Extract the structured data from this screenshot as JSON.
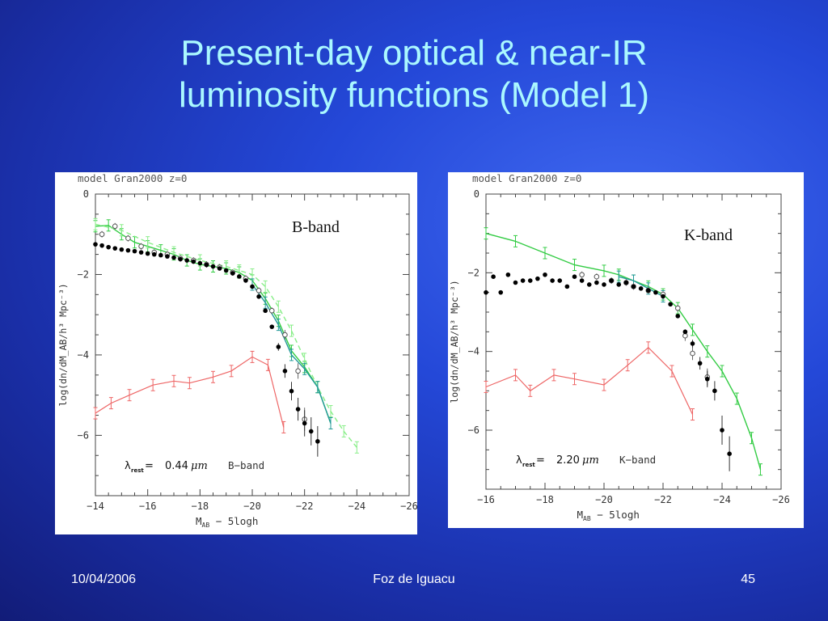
{
  "slide": {
    "title_line1": "Present-day optical & near-IR",
    "title_line2": "luminosity functions (Model 1)",
    "footer_date": "10/04/2006",
    "footer_venue": "Foz de Iguacu",
    "footer_page": "45"
  },
  "colors": {
    "green": "#33cc44",
    "green_dashed": "#88ee88",
    "teal": "#229999",
    "red": "#ee6666",
    "points": "#000000"
  },
  "chart_data": [
    {
      "type": "scatter",
      "header": "model Gran2000 z=0",
      "band_label": "B-band",
      "lambda_symbol": "λ",
      "lambda_sub": "rest",
      "lambda_eq": "=",
      "lambda_value": "0.44",
      "lambda_unit": "μm",
      "lambda_band": "B−band",
      "xlabel": "M_AB − 5logh",
      "ylabel": "log(dn/dM_AB/h³ Mpc⁻³)",
      "xlim": [
        -14,
        -26
      ],
      "ylim": [
        -7.5,
        0
      ],
      "xticks": [
        -14,
        -16,
        -18,
        -20,
        -22,
        -24,
        -26
      ],
      "yticks": [
        0,
        -2,
        -4,
        -6
      ],
      "filled_points": {
        "x": [
          -14.0,
          -14.25,
          -14.5,
          -14.75,
          -15.0,
          -15.25,
          -15.5,
          -15.75,
          -16.0,
          -16.25,
          -16.5,
          -16.75,
          -17.0,
          -17.25,
          -17.5,
          -17.75,
          -18.0,
          -18.25,
          -18.5,
          -18.75,
          -19.0,
          -19.25,
          -19.5,
          -19.75,
          -20.0,
          -20.25,
          -20.5,
          -20.75,
          -21.0,
          -21.25,
          -21.5,
          -21.75,
          -22.0,
          -22.25,
          -22.5
        ],
        "y": [
          -1.25,
          -1.28,
          -1.32,
          -1.35,
          -1.38,
          -1.4,
          -1.42,
          -1.45,
          -1.48,
          -1.5,
          -1.52,
          -1.55,
          -1.58,
          -1.62,
          -1.65,
          -1.68,
          -1.72,
          -1.76,
          -1.8,
          -1.85,
          -1.9,
          -1.97,
          -2.05,
          -2.15,
          -2.3,
          -2.55,
          -2.9,
          -3.3,
          -3.8,
          -4.4,
          -4.9,
          -5.35,
          -5.7,
          -5.9,
          -6.15
        ]
      },
      "open_points": {
        "x": [
          -14.25,
          -14.75,
          -15.25,
          -15.75,
          -16.25,
          -16.75,
          -17.25,
          -17.75,
          -18.25,
          -18.75,
          -19.25,
          -19.75,
          -20.25,
          -20.75,
          -21.25,
          -21.75,
          -22.0
        ],
        "y": [
          -1.0,
          -0.8,
          -1.1,
          -1.3,
          -1.45,
          -1.5,
          -1.6,
          -1.65,
          -1.75,
          -1.82,
          -1.95,
          -2.1,
          -2.4,
          -2.9,
          -3.5,
          -4.4,
          -5.6
        ]
      },
      "series": [
        {
          "style": "green-solid",
          "x": [
            -14,
            -14.5,
            -15,
            -15.5,
            -16,
            -16.5,
            -17,
            -17.5,
            -18,
            -18.5,
            -19,
            -19.5,
            -20,
            -20.5,
            -21,
            -21.5,
            -22,
            -22.5,
            -23
          ],
          "y": [
            -0.8,
            -0.78,
            -1.0,
            -1.2,
            -1.3,
            -1.4,
            -1.5,
            -1.65,
            -1.75,
            -1.8,
            -1.85,
            -1.95,
            -2.15,
            -2.6,
            -3.15,
            -3.9,
            -4.3,
            -4.8,
            -5.7
          ]
        },
        {
          "style": "green-dashed",
          "x": [
            -14,
            -15,
            -16,
            -17,
            -18,
            -19,
            -19.5,
            -20,
            -20.5,
            -21,
            -21.5,
            -22,
            -22.5,
            -23,
            -23.5,
            -24
          ],
          "y": [
            -0.75,
            -0.9,
            -1.2,
            -1.45,
            -1.65,
            -1.8,
            -1.9,
            -2.0,
            -2.3,
            -2.8,
            -3.4,
            -4.1,
            -4.8,
            -5.4,
            -5.9,
            -6.3
          ]
        },
        {
          "style": "teal",
          "x": [
            -20,
            -20.5,
            -21,
            -21.5,
            -22,
            -22.5,
            -23
          ],
          "y": [
            -2.25,
            -2.7,
            -3.25,
            -4.0,
            -4.35,
            -4.8,
            -5.7
          ]
        },
        {
          "style": "red",
          "x": [
            -14,
            -14.6,
            -15.3,
            -16.2,
            -17,
            -17.6,
            -18.5,
            -19.2,
            -20,
            -20.6,
            -21.2
          ],
          "y": [
            -5.45,
            -5.2,
            -5.0,
            -4.75,
            -4.65,
            -4.7,
            -4.55,
            -4.4,
            -4.05,
            -4.25,
            -5.8
          ]
        }
      ]
    },
    {
      "type": "scatter",
      "header": "model Gran2000 z=0",
      "band_label": "K-band",
      "lambda_symbol": "λ",
      "lambda_sub": "rest",
      "lambda_eq": "=",
      "lambda_value": "2.20",
      "lambda_unit": "μm",
      "lambda_band": "K−band",
      "xlabel": "M_AB − 5logh",
      "ylabel": "log(dn/dM_AB/h³ Mpc⁻³)",
      "xlim": [
        -16,
        -26
      ],
      "ylim": [
        -7.5,
        0
      ],
      "xticks": [
        -16,
        -18,
        -20,
        -22,
        -24,
        -26
      ],
      "yticks": [
        0,
        -2,
        -4,
        -6
      ],
      "filled_points": {
        "x": [
          -16.0,
          -16.25,
          -16.5,
          -16.75,
          -17.0,
          -17.25,
          -17.5,
          -17.75,
          -18.0,
          -18.25,
          -18.5,
          -18.75,
          -19.0,
          -19.25,
          -19.5,
          -19.75,
          -20.0,
          -20.25,
          -20.5,
          -20.75,
          -21.0,
          -21.25,
          -21.5,
          -21.75,
          -22.0,
          -22.25,
          -22.5,
          -22.75,
          -23.0,
          -23.25,
          -23.5,
          -23.75,
          -24.0,
          -24.25
        ],
        "y": [
          -2.5,
          -2.1,
          -2.5,
          -2.05,
          -2.25,
          -2.2,
          -2.2,
          -2.15,
          -2.05,
          -2.2,
          -2.2,
          -2.35,
          -2.1,
          -2.2,
          -2.3,
          -2.25,
          -2.3,
          -2.2,
          -2.3,
          -2.25,
          -2.35,
          -2.4,
          -2.45,
          -2.5,
          -2.6,
          -2.8,
          -3.1,
          -3.5,
          -3.8,
          -4.3,
          -4.7,
          -5.0,
          -6.0,
          -6.6
        ]
      },
      "open_points": {
        "x": [
          -19.25,
          -19.75,
          -20.25,
          -20.75,
          -21.0,
          -21.5,
          -22.0,
          -22.5,
          -22.75,
          -23.0,
          -23.5
        ],
        "y": [
          -2.05,
          -2.1,
          -2.2,
          -2.25,
          -2.35,
          -2.45,
          -2.55,
          -2.9,
          -3.6,
          -4.05,
          -4.65
        ]
      },
      "series": [
        {
          "style": "green-solid",
          "x": [
            -16,
            -17,
            -18,
            -19,
            -20,
            -20.5,
            -21,
            -21.5,
            -22,
            -22.5,
            -23,
            -23.5,
            -24,
            -24.5,
            -25,
            -25.3
          ],
          "y": [
            -1.0,
            -1.2,
            -1.5,
            -1.8,
            -1.95,
            -2.05,
            -2.2,
            -2.35,
            -2.55,
            -2.9,
            -3.45,
            -4.0,
            -4.5,
            -5.2,
            -6.2,
            -7.0
          ]
        },
        {
          "style": "teal",
          "x": [
            -20.5,
            -21,
            -21.5,
            -22
          ],
          "y": [
            -2.1,
            -2.2,
            -2.4,
            -2.6
          ]
        },
        {
          "style": "red",
          "x": [
            -16,
            -17,
            -17.5,
            -18.3,
            -19,
            -20,
            -20.8,
            -21.5,
            -22.3,
            -23
          ],
          "y": [
            -4.9,
            -4.6,
            -5.0,
            -4.6,
            -4.7,
            -4.85,
            -4.35,
            -3.9,
            -4.5,
            -5.6
          ]
        }
      ]
    }
  ]
}
